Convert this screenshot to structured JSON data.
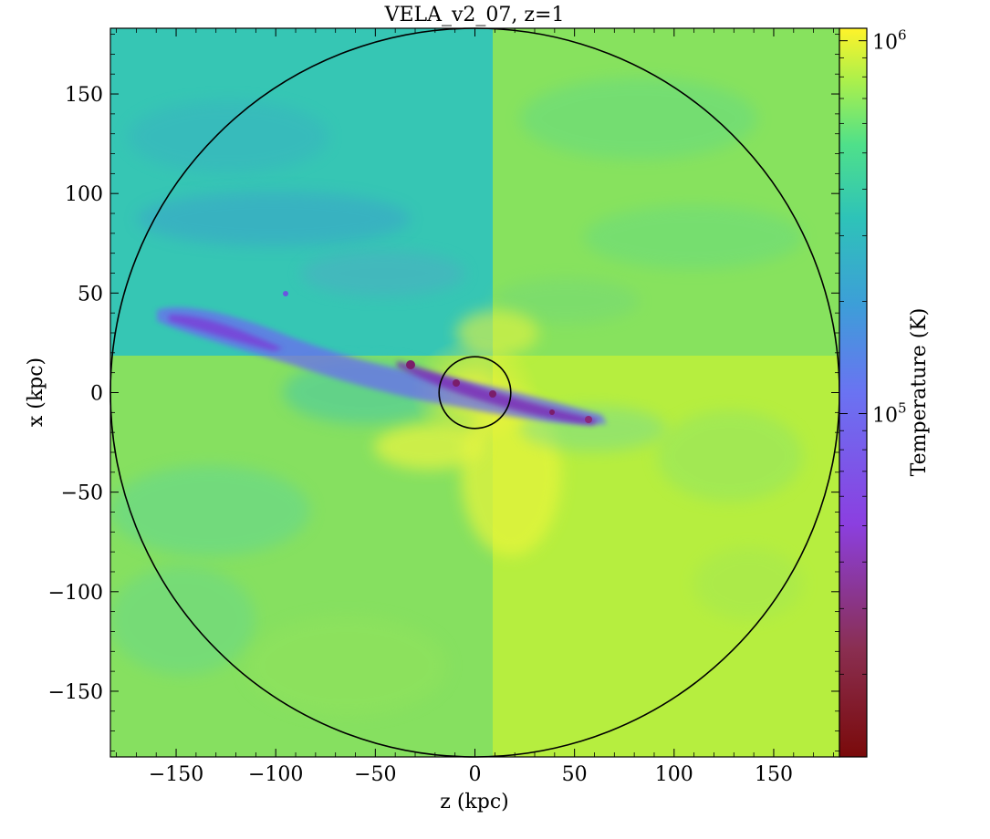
{
  "chart_data": {
    "type": "heatmap",
    "title": "VELA_v2_07, z=1",
    "xlabel": "z  (kpc)",
    "ylabel": "x  (kpc)",
    "xlim": [
      -183,
      183
    ],
    "ylim": [
      -183,
      183
    ],
    "xticks": [
      -150,
      -100,
      -50,
      0,
      50,
      100,
      150
    ],
    "xtick_labels": [
      "−150",
      "−100",
      "−50",
      "0",
      "50",
      "100",
      "150"
    ],
    "yticks": [
      150,
      100,
      50,
      0,
      -50,
      -100,
      -150
    ],
    "ytick_labels": [
      "150",
      "100",
      "50",
      "0",
      "−50",
      "−100",
      "−150"
    ],
    "colorbar": {
      "label": "Temperature  (K)",
      "scale": "log",
      "range": [
        12000,
        1080000
      ],
      "tick_values": [
        1000000,
        100000
      ],
      "tick_labels": [
        {
          "base": "10",
          "exp": "6"
        },
        {
          "base": "10",
          "exp": "5"
        }
      ],
      "colormap": "viridis-like (yellow–green–teal–blue–purple–dark red)"
    },
    "circles": [
      {
        "name": "outer-virial-circle",
        "center": [
          0,
          0
        ],
        "radius_kpc": 183
      },
      {
        "name": "inner-galaxy-circle",
        "center": [
          0,
          0
        ],
        "radius_kpc": 18
      }
    ],
    "quadrant_split": {
      "z_kpc": 9,
      "x_kpc": 18
    },
    "disk": {
      "from_kpc": [
        -160,
        38
      ],
      "to_kpc": [
        65,
        -15
      ],
      "min_temperature_K": 20000
    }
  }
}
